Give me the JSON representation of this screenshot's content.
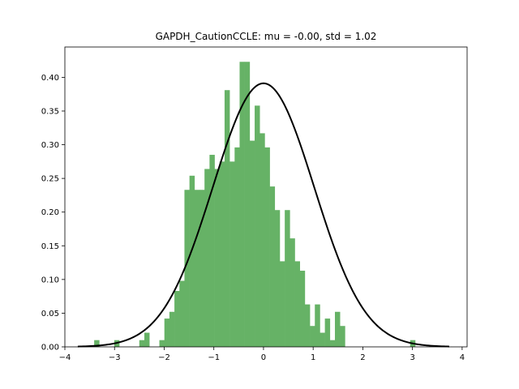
{
  "chart_data": {
    "type": "bar",
    "title": "GAPDH_CautionCCLE: mu = -0.00, std = 1.02",
    "xlabel": "",
    "ylabel": "",
    "xlim": [
      -4.0,
      4.1
    ],
    "ylim": [
      0.0,
      0.445
    ],
    "grid": false,
    "x_ticks": [
      -4,
      -3,
      -2,
      -1,
      0,
      1,
      2,
      3,
      4
    ],
    "y_ticks": [
      0.0,
      0.05,
      0.1,
      0.15,
      0.2,
      0.25,
      0.3,
      0.35,
      0.4
    ],
    "histogram": {
      "color": "#66b266",
      "bin_start": -3.41,
      "bin_width": 0.101,
      "values": [
        0.01,
        0.0,
        0.0,
        0.0,
        0.01,
        0.0,
        0.0,
        0.0,
        0.0,
        0.01,
        0.021,
        0.0,
        0.0,
        0.01,
        0.042,
        0.052,
        0.083,
        0.098,
        0.233,
        0.254,
        0.233,
        0.233,
        0.264,
        0.285,
        0.264,
        0.275,
        0.381,
        0.275,
        0.296,
        0.423,
        0.423,
        0.306,
        0.358,
        0.317,
        0.296,
        0.238,
        0.203,
        0.127,
        0.203,
        0.161,
        0.127,
        0.113,
        0.063,
        0.031,
        0.063,
        0.021,
        0.042,
        0.01,
        0.052,
        0.031,
        0.0,
        0.0,
        0.0,
        0.0,
        0.0,
        0.0,
        0.0,
        0.0,
        0.0,
        0.0,
        0.0,
        0.0,
        0.0,
        0.01
      ]
    },
    "series": [
      {
        "type": "line",
        "color": "#000000",
        "distribution": "normal",
        "mu": 0.0,
        "std": 1.02,
        "x_range": [
          -3.74,
          3.74
        ]
      }
    ]
  }
}
